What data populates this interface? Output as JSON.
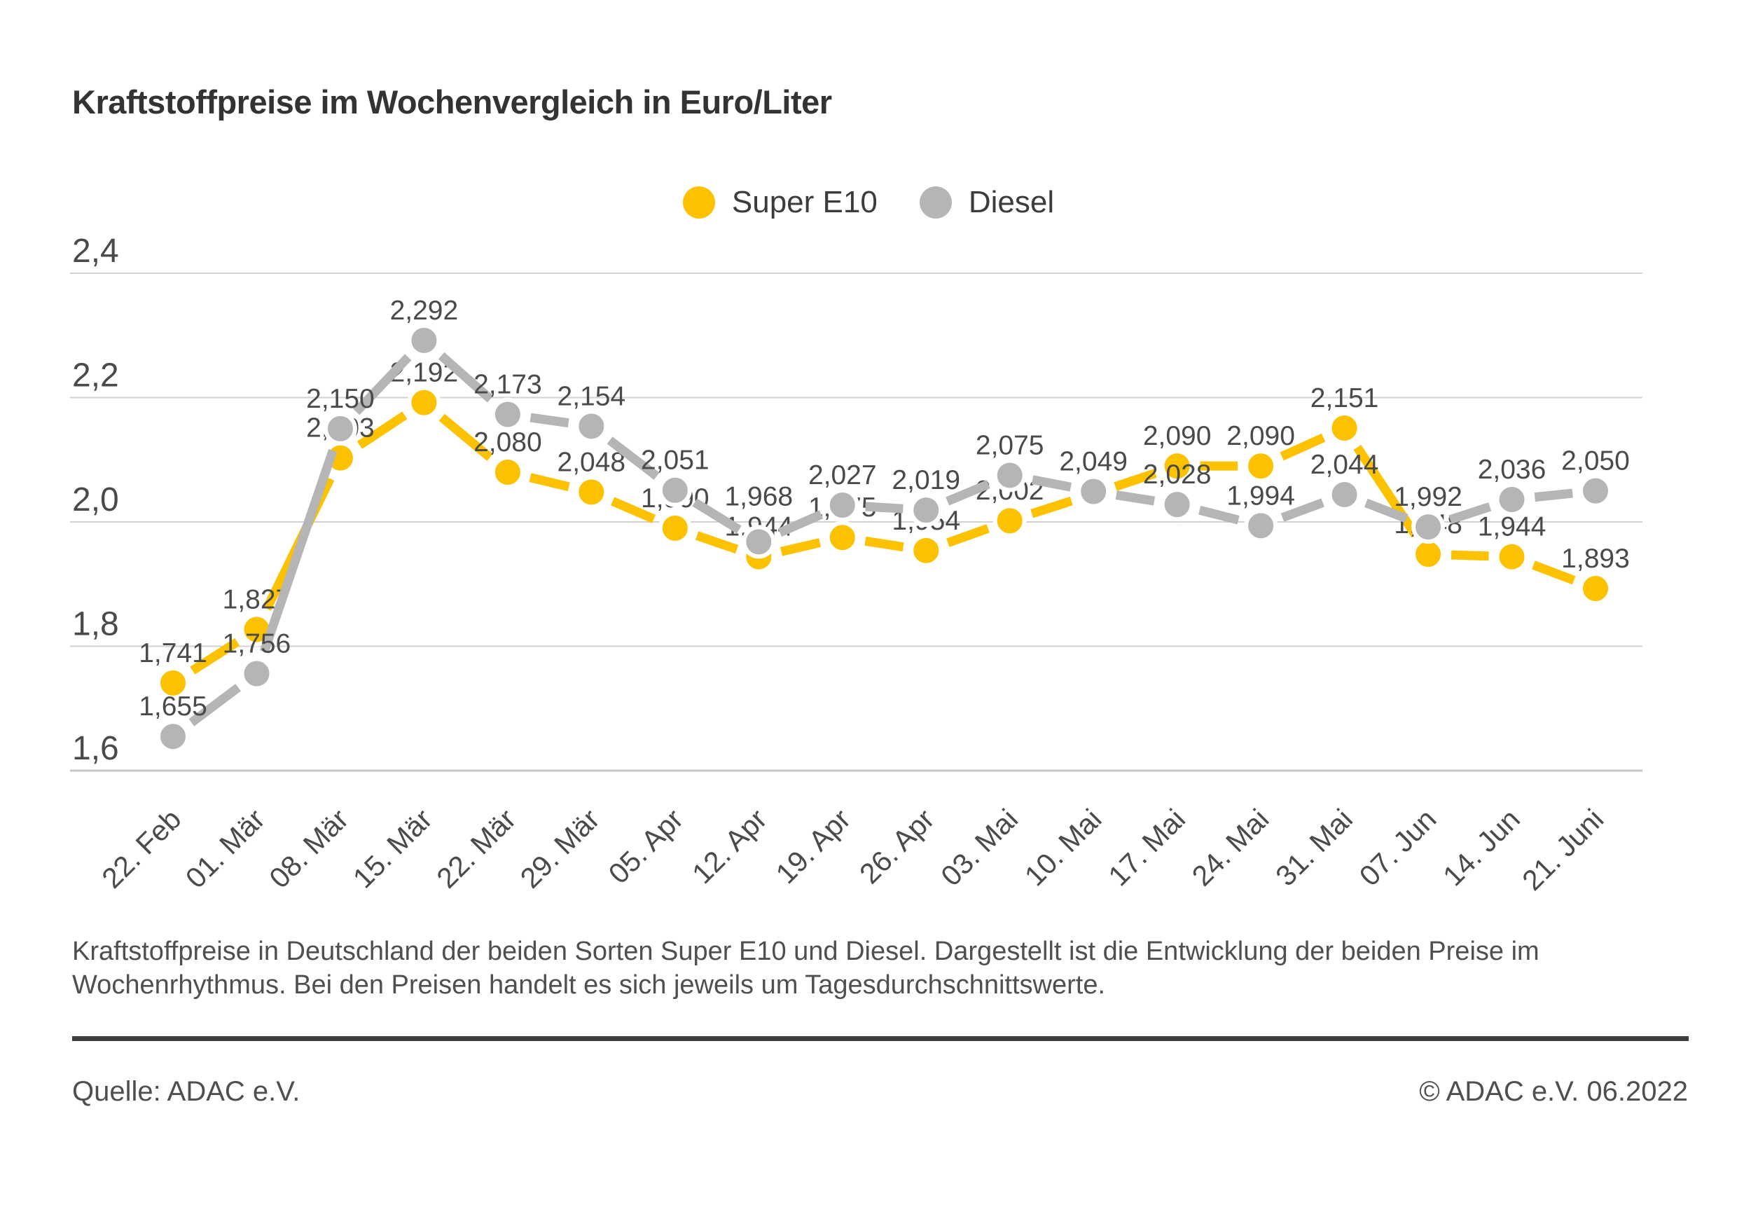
{
  "title": "Kraftstoffpreise im Wochenvergleich in Euro/Liter",
  "legend": {
    "items": [
      {
        "label": "Super E10",
        "color": "#FCC200"
      },
      {
        "label": "Diesel",
        "color": "#B5B5B5"
      }
    ]
  },
  "chart_data": {
    "type": "line",
    "title": "Kraftstoffpreise im Wochenvergleich in Euro/Liter",
    "unit": "Euro/Liter",
    "grid": true,
    "legend_position": "top-center",
    "ylim": [
      1.6,
      2.4
    ],
    "yticks": [
      {
        "value": 2.4,
        "label": "2,4"
      },
      {
        "value": 2.2,
        "label": "2,2"
      },
      {
        "value": 2.0,
        "label": "2,0"
      },
      {
        "value": 1.8,
        "label": "1,8"
      },
      {
        "value": 1.6,
        "label": "1,6"
      }
    ],
    "categories": [
      "22. Feb",
      "01. Mär",
      "08. Mär",
      "15. Mär",
      "22. Mär",
      "29. Mär",
      "05. Apr",
      "12. Apr",
      "19. Apr",
      "26. Apr",
      "03. Mai",
      "10. Mai",
      "17. Mai",
      "24. Mai",
      "31. Mai",
      "07. Jun",
      "14. Jun",
      "21. Juni"
    ],
    "series": [
      {
        "name": "Super E10",
        "color": "#FCC200",
        "values": [
          1.741,
          1.827,
          2.103,
          2.192,
          2.08,
          2.048,
          1.99,
          1.944,
          1.975,
          1.954,
          2.002,
          2.045,
          2.09,
          2.09,
          2.151,
          1.948,
          1.944,
          1.893
        ],
        "labels": [
          "1,741",
          "1,827",
          "2,103",
          "2,192",
          "2,080",
          "2,048",
          "1,990",
          "1,944",
          "1,975",
          "1,954",
          "2,002",
          "",
          "2,090",
          "2,090",
          "2,151",
          "1,948",
          "1,944",
          "1,893"
        ],
        "label_dy": {}
      },
      {
        "name": "Diesel",
        "color": "#B5B5B5",
        "values": [
          1.655,
          1.756,
          2.15,
          2.292,
          2.173,
          2.154,
          2.051,
          1.968,
          2.027,
          2.019,
          2.075,
          2.049,
          2.028,
          1.994,
          2.044,
          1.992,
          2.036,
          2.05
        ],
        "labels": [
          "1,655",
          "1,756",
          "2,150",
          "2,292",
          "2,173",
          "2,154",
          "2,051",
          "1,968",
          "2,027",
          "2,019",
          "2,075",
          "2,049",
          "2,028",
          "1,994",
          "2,044",
          "1,992",
          "2,036",
          "2,050"
        ],
        "label_dy": {
          "7": -22
        }
      }
    ],
    "note": "On 10. Mai the Super E10 marker is overlapped by the Diesel marker and its value label is not displayed in the chart."
  },
  "caption": {
    "line1": "Kraftstoffpreise in Deutschland der beiden Sorten Super E10 und Diesel. Dargestellt ist die Entwicklung der beiden Preise im",
    "line2": "Wochenrhythmus. Bei den Preisen handelt es sich jeweils um Tagesdurchschnittswerte."
  },
  "footer": {
    "source": "Quelle: ADAC e.V.",
    "copyright": "© ADAC e.V. 06.2022"
  }
}
